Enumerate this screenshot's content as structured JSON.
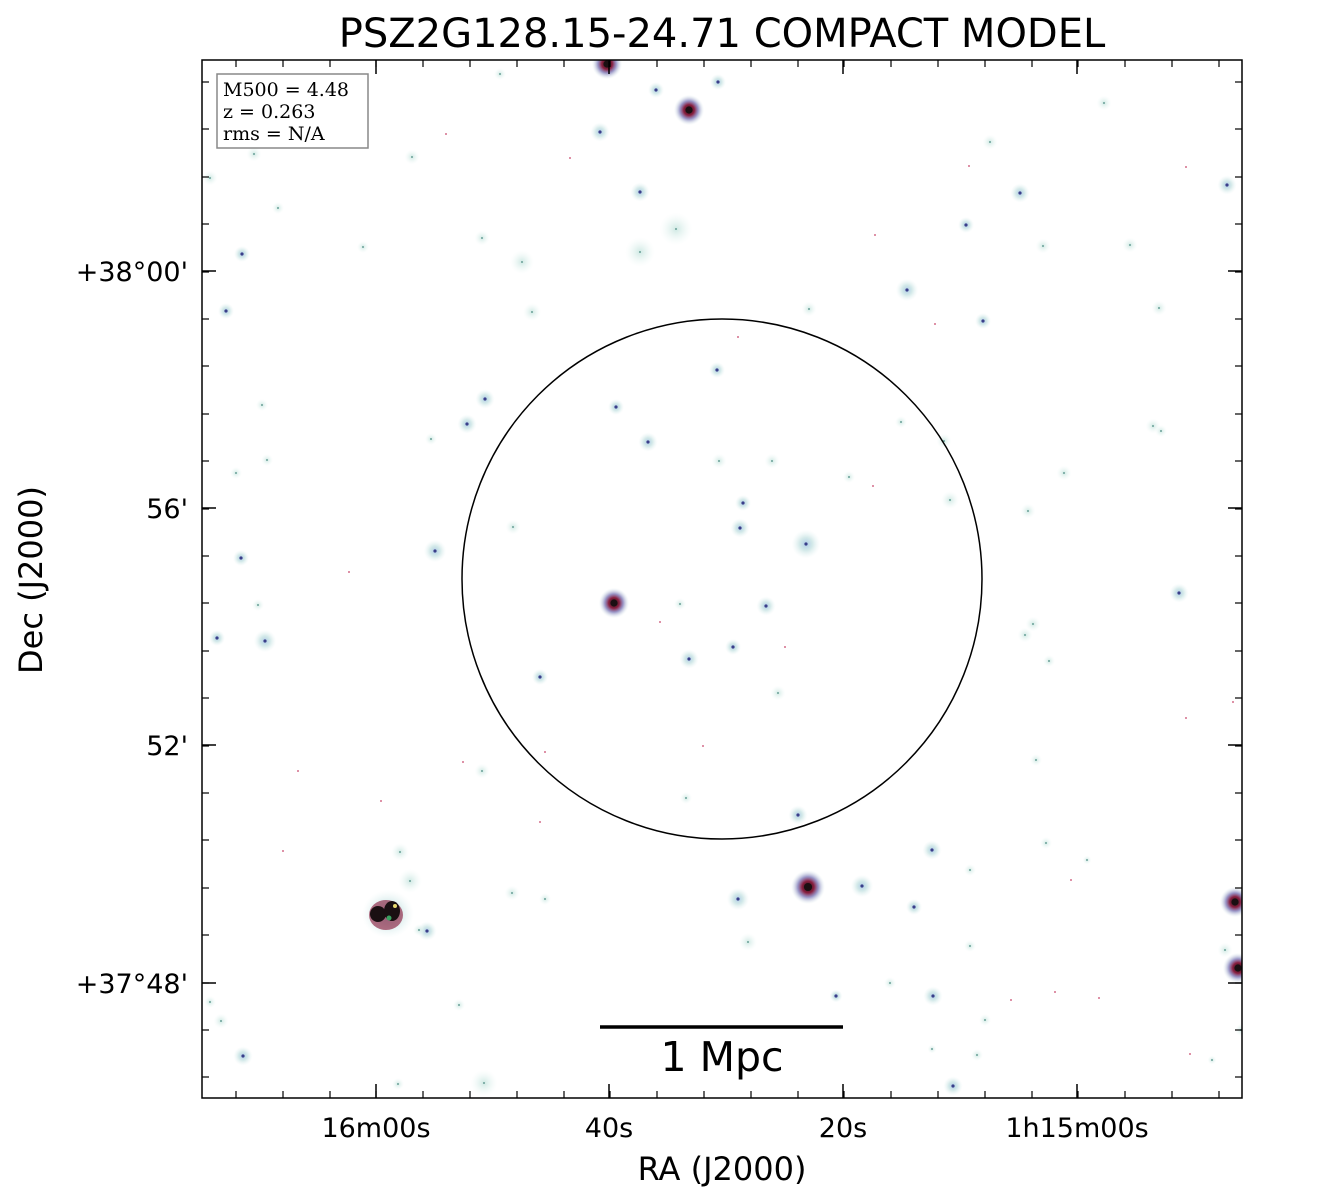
{
  "title": "PSZ2G128.15-24.71 COMPACT MODEL",
  "axes": {
    "xlabel": "RA (J2000)",
    "ylabel": "Dec (J2000)",
    "x_ticks": [
      "16m00s",
      "40s",
      "20s",
      "1h15m00s"
    ],
    "y_ticks": [
      "+38°00'",
      "56'",
      "52'",
      "+37°48'"
    ]
  },
  "info_box": {
    "lines": [
      "M500 = 4.48",
      "z = 0.263",
      "rms = N/A"
    ]
  },
  "scale_bar": {
    "label": "1 Mpc"
  },
  "colors": {
    "halo": "#cfe6e6",
    "source_blue": "#3a3f8a",
    "source_dark": "#1a0f12",
    "source_red": "#c0305a",
    "source_green": "#3aa060",
    "frame": "#000000",
    "info_border": "#888888"
  }
}
